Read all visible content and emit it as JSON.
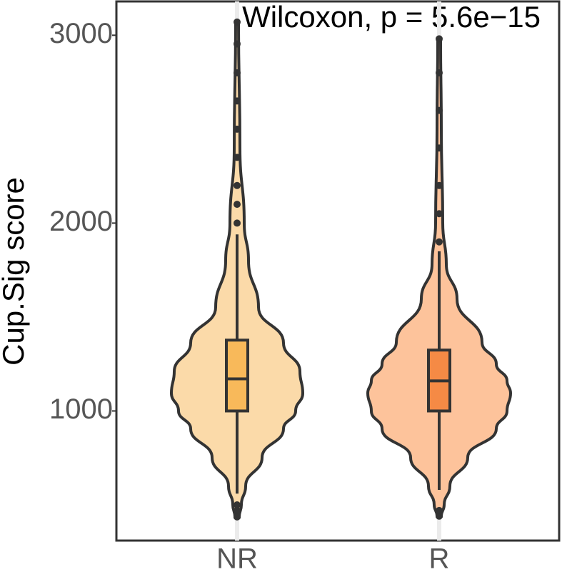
{
  "chart_data": {
    "type": "violin",
    "title": "Wilcoxon, p = 5.6e−15",
    "ylabel": "Cup.Sig score",
    "categories": [
      "NR",
      "R"
    ],
    "ylim": [
      310,
      3180
    ],
    "yticks": [
      1000,
      2000,
      3000
    ],
    "grid": true,
    "groups": [
      {
        "color": "#fbdaa9",
        "box_color": "#f8b95a",
        "q1": 1000,
        "median": 1171,
        "q3": 1377,
        "whisker_low": 560,
        "whisker_high": 1940,
        "outliers": [
          436,
          470,
          500,
          2000,
          2100,
          2200,
          2350,
          2500,
          2650,
          2800,
          2954,
          3070
        ],
        "density_y": [
          436,
          500,
          600,
          752,
          905,
          1000,
          1095,
          1210,
          1362,
          1552,
          1800,
          2000,
          2400,
          3070
        ],
        "density": [
          0.03,
          0.06,
          0.12,
          0.35,
          0.65,
          0.82,
          0.92,
          0.88,
          0.65,
          0.3,
          0.16,
          0.1,
          0.04,
          0.02
        ]
      },
      {
        "color": "#fdc39b",
        "box_color": "#f58a45",
        "q1": 1000,
        "median": 1160,
        "q3": 1324,
        "whisker_low": 580,
        "whisker_high": 1850,
        "outliers": [
          440,
          470,
          1900,
          2050,
          2200,
          2400,
          2600,
          2800,
          2981
        ],
        "density_y": [
          440,
          500,
          600,
          752,
          905,
          1000,
          1095,
          1160,
          1250,
          1366,
          1596,
          1781,
          2000,
          2500,
          2981
        ],
        "density": [
          0.03,
          0.07,
          0.15,
          0.4,
          0.8,
          0.95,
          1.0,
          0.95,
          0.8,
          0.6,
          0.25,
          0.1,
          0.05,
          0.03,
          0.02
        ]
      }
    ]
  }
}
